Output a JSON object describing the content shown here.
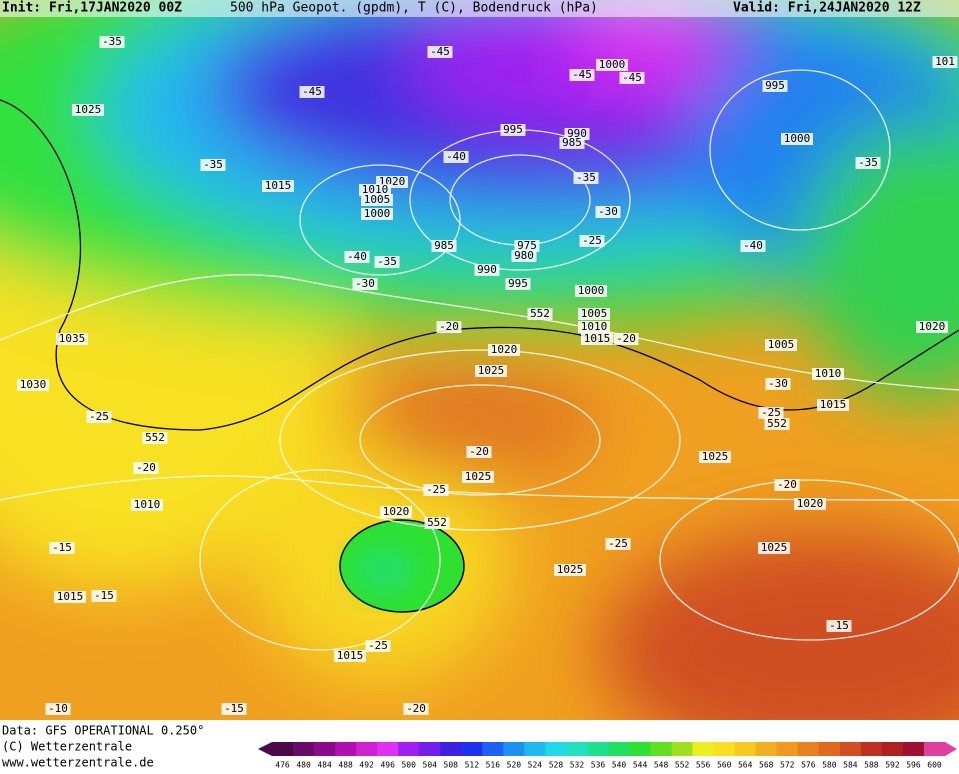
{
  "header": {
    "init": "Init: Fri,17JAN2020 00Z",
    "title": "500 hPa Geopot. (gpdm), T (C), Bodendruck (hPa)",
    "valid": "Valid: Fri,24JAN2020 12Z"
  },
  "footer": {
    "source": "Data: GFS OPERATIONAL 0.250°",
    "copyright": "(C) Wetterzentrale",
    "url": "www.wetterzentrale.de"
  },
  "map_labels": [
    "-35",
    "1025",
    "-45",
    "-45",
    "1000",
    "-45",
    "-45",
    "995",
    "101",
    "995",
    "990",
    "985",
    "1000",
    "-35",
    "-35",
    "1015",
    "1020",
    "1010",
    "1005",
    "1000",
    "-40",
    "-35",
    "-30",
    "-25",
    "-40",
    "985",
    "975",
    "980",
    "-40",
    "-35",
    "990",
    "-30",
    "995",
    "1000",
    "552",
    "1005",
    "-20",
    "1010",
    "1020",
    "1015",
    "-20",
    "1035",
    "1020",
    "1005",
    "1025",
    "1010",
    "1030",
    "-30",
    "1015",
    "-25",
    "-25",
    "552",
    "552",
    "-20",
    "1025",
    "-20",
    "1025",
    "-25",
    "-20",
    "1010",
    "1020",
    "552",
    "1020",
    "-25",
    "-15",
    "1025",
    "1025",
    "1015",
    "-15",
    "-15",
    "-25",
    "1015",
    "-10",
    "-15",
    "-20"
  ],
  "colorbar": {
    "levels": [
      476,
      480,
      484,
      488,
      492,
      496,
      500,
      504,
      508,
      512,
      516,
      520,
      524,
      528,
      532,
      536,
      540,
      544,
      548,
      552,
      556,
      560,
      564,
      568,
      572,
      576,
      580,
      584,
      588,
      592,
      596,
      600
    ],
    "colors": [
      "#4a0a4a",
      "#6a0a6a",
      "#8a0a8a",
      "#b010b0",
      "#d020d0",
      "#e030f0",
      "#a020f0",
      "#7020e8",
      "#4020e0",
      "#2030f0",
      "#2060f0",
      "#2090f0",
      "#20b8f0",
      "#20d8e8",
      "#20e0c0",
      "#20e090",
      "#20e060",
      "#30e030",
      "#60e020",
      "#a0e020",
      "#e8f020",
      "#f8e020",
      "#f8c820",
      "#f0b020",
      "#f09820",
      "#e88020",
      "#e06820",
      "#d05020",
      "#c03020",
      "#b02020",
      "#a01030",
      "#e040a0"
    ]
  }
}
